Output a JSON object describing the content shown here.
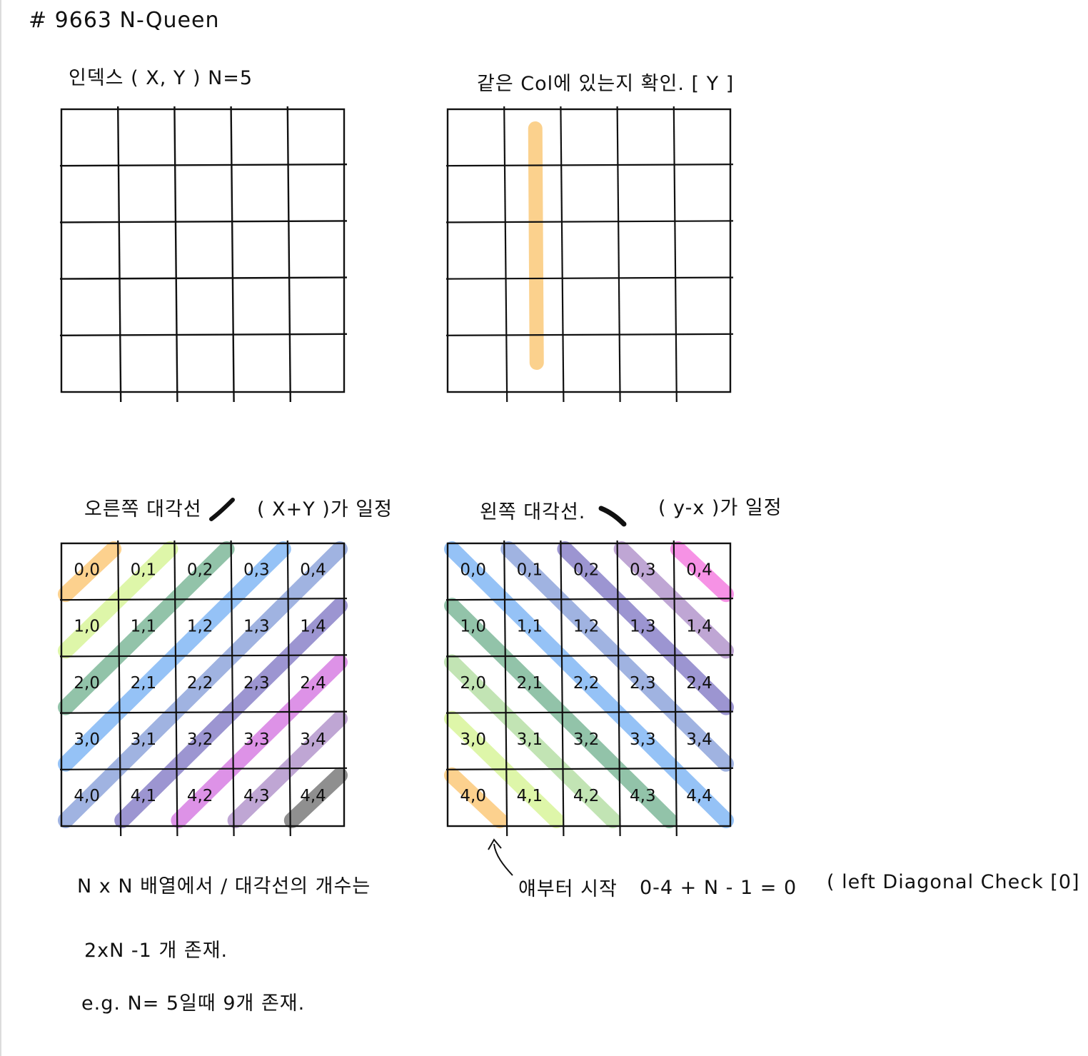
{
  "page": {
    "title": "# 9663 N-Queen"
  },
  "panels": {
    "index": {
      "label": "인덱스 ( X, Y )   N=5"
    },
    "column": {
      "label": "같은 Col에 있는지 확인.  [ Y ]",
      "highlight_color": "#fbc97a"
    },
    "right_diagonal": {
      "label": "오른쪽 대각선",
      "formula": "( X+Y )가 일정"
    },
    "left_diagonal": {
      "label": "왼쪽 대각선.",
      "formula": "( y-x )가 일정"
    }
  },
  "grid": {
    "n": 5,
    "cells": [
      [
        "0,0",
        "0,1",
        "0,2",
        "0,3",
        "0,4"
      ],
      [
        "1,0",
        "1,1",
        "1,2",
        "1,3",
        "1,4"
      ],
      [
        "2,0",
        "2,1",
        "2,2",
        "2,3",
        "2,4"
      ],
      [
        "3,0",
        "3,1",
        "3,2",
        "3,3",
        "3,4"
      ],
      [
        "4,0",
        "4,1",
        "4,2",
        "4,3",
        "4,4"
      ]
    ]
  },
  "right_diag_colors": [
    "#fbc97a",
    "#d8f59a",
    "#7fb99a",
    "#82b7f5",
    "#8fa6dc",
    "#8b82c9",
    "#d77fe3",
    "#b497cd",
    "#7b7b7b"
  ],
  "left_diag_colors": [
    "#fbc97a",
    "#d8f59a",
    "#b7dfa7",
    "#7fb99a",
    "#82b7f5",
    "#8fa6dc",
    "#8b82c9",
    "#b497cd",
    "#f47fe0"
  ],
  "notes": {
    "diagonal_count_line1": "N x N 배열에서   /   대각선의 개수는",
    "diagonal_count_line2": "2xN -1 개 존재.",
    "example": "e.g.  N= 5일때   9개 존재.",
    "start_note": "얘부터 시작",
    "offset_formula": "0-4 + N - 1   =  0",
    "left_check": "( left Diagonal Check [0] )"
  }
}
